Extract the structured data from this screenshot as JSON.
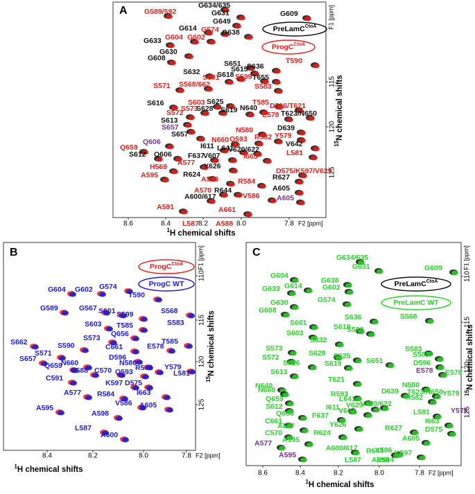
{
  "panels": [
    {
      "letter": "A",
      "x_ticks": [
        "8.6",
        "8.4",
        "8.2",
        "8.0",
        "7.8"
      ],
      "x_unit": "F2 [ppm]",
      "y_ticks": [
        "115",
        "120",
        "125"
      ],
      "y_unit": "F1 [ppm]",
      "x_axis_label": {
        "sup": "1",
        "text": "H chemical shifts"
      },
      "y_axis_label": {
        "sup": "15",
        "text": "N chemical shifts"
      },
      "legend": [
        {
          "name": "PreLamC",
          "sup": "CtoA",
          "color": "black"
        },
        {
          "name": "ProgC",
          "sup": "CtoA",
          "color": "red"
        }
      ],
      "peak_labels": [
        {
          "text": "G589/592",
          "color": "red"
        },
        {
          "text": "G634/635",
          "color": "black"
        },
        {
          "text": "G631",
          "color": "black"
        },
        {
          "text": "G649",
          "color": "black"
        },
        {
          "text": "G609",
          "color": "black"
        },
        {
          "text": "G614",
          "color": "black"
        },
        {
          "text": "G574",
          "color": "red"
        },
        {
          "text": "G638",
          "color": "black"
        },
        {
          "text": "G604",
          "color": "red"
        },
        {
          "text": "G602",
          "color": "red"
        },
        {
          "text": "G633",
          "color": "black"
        },
        {
          "text": "G630",
          "color": "black"
        },
        {
          "text": "G608",
          "color": "black"
        },
        {
          "text": "S651",
          "color": "black"
        },
        {
          "text": "S636",
          "color": "black"
        },
        {
          "text": "S615",
          "color": "black"
        },
        {
          "text": "S632",
          "color": "black"
        },
        {
          "text": "T590",
          "color": "red"
        },
        {
          "text": "S618",
          "color": "black"
        },
        {
          "text": "S601",
          "color": "red"
        },
        {
          "text": "S599",
          "color": "red"
        },
        {
          "text": "T655",
          "color": "black"
        },
        {
          "text": "S571",
          "color": "red"
        },
        {
          "text": "S568/662",
          "color": "red"
        },
        {
          "text": "S583",
          "color": "red"
        },
        {
          "text": "S616",
          "color": "black"
        },
        {
          "text": "S603",
          "color": "red"
        },
        {
          "text": "S625",
          "color": "black"
        },
        {
          "text": "T585",
          "color": "red"
        },
        {
          "text": "D596/T621",
          "color": "red"
        },
        {
          "text": "S573",
          "color": "red"
        },
        {
          "text": "S628",
          "color": "black"
        },
        {
          "text": "S619",
          "color": "black"
        },
        {
          "text": "N640",
          "color": "black"
        },
        {
          "text": "E578",
          "color": "red"
        },
        {
          "text": "T623/N650",
          "color": "black"
        },
        {
          "text": "S572",
          "color": "red"
        },
        {
          "text": "S613",
          "color": "black"
        },
        {
          "text": "S657",
          "color": "purple"
        },
        {
          "text": "D639",
          "color": "black"
        },
        {
          "text": "N580",
          "color": "red"
        },
        {
          "text": "S657",
          "color": "black"
        },
        {
          "text": "R582",
          "color": "red"
        },
        {
          "text": "Y579",
          "color": "red"
        },
        {
          "text": "Q593",
          "color": "red"
        },
        {
          "text": "N660",
          "color": "red"
        },
        {
          "text": "Q606",
          "color": "purple"
        },
        {
          "text": "V642",
          "color": "black"
        },
        {
          "text": "I611",
          "color": "black"
        },
        {
          "text": "L641",
          "color": "black"
        },
        {
          "text": "V620/622",
          "color": "black"
        },
        {
          "text": "Q659",
          "color": "red"
        },
        {
          "text": "L581",
          "color": "red"
        },
        {
          "text": "S612",
          "color": "black"
        },
        {
          "text": "Q606",
          "color": "black"
        },
        {
          "text": "F637",
          "color": "black"
        },
        {
          "text": "V607",
          "color": "black"
        },
        {
          "text": "I663",
          "color": "red"
        },
        {
          "text": "A577",
          "color": "red"
        },
        {
          "text": "Y626",
          "color": "black"
        },
        {
          "text": "H569",
          "color": "red"
        },
        {
          "text": "D575/K597/V629",
          "color": "red"
        },
        {
          "text": "R624",
          "color": "black"
        },
        {
          "text": "A595",
          "color": "red"
        },
        {
          "text": "R627",
          "color": "black"
        },
        {
          "text": "A598",
          "color": "red"
        },
        {
          "text": "R584",
          "color": "red"
        },
        {
          "text": "A605",
          "color": "black"
        },
        {
          "text": "A570",
          "color": "red"
        },
        {
          "text": "R644",
          "color": "black"
        },
        {
          "text": "A600/617",
          "color": "black"
        },
        {
          "text": "V586",
          "color": "red"
        },
        {
          "text": "A605",
          "color": "purple"
        },
        {
          "text": "A591",
          "color": "red"
        },
        {
          "text": "A661",
          "color": "red"
        },
        {
          "text": "L587",
          "color": "red"
        },
        {
          "text": "A588",
          "color": "red"
        }
      ]
    },
    {
      "letter": "B",
      "x_ticks": [
        "8.4",
        "8.2",
        "8.0",
        "7.8"
      ],
      "x_unit": "F2 [ppm]",
      "y_ticks": [
        "110",
        "115",
        "120",
        "125"
      ],
      "y_unit": "F1 [ppm]",
      "x_axis_label": {
        "sup": "1",
        "text": "H chemical shifts"
      },
      "y_axis_label": {
        "sup": "15",
        "text": "N chemical shifts"
      },
      "legend": [
        {
          "name": "ProgC",
          "sup": "CtoA",
          "color": "red"
        },
        {
          "name": "ProgC WT",
          "sup": null,
          "color": "blue"
        }
      ],
      "peak_labels": [
        {
          "text": "G604",
          "color": "blue"
        },
        {
          "text": "G602",
          "color": "blue"
        },
        {
          "text": "G574",
          "color": "blue"
        },
        {
          "text": "G589",
          "color": "blue"
        },
        {
          "text": "G567",
          "color": "blue"
        },
        {
          "text": "T590",
          "color": "blue"
        },
        {
          "text": "S601",
          "color": "blue"
        },
        {
          "text": "S599",
          "color": "blue"
        },
        {
          "text": "S568",
          "color": "blue"
        },
        {
          "text": "S603",
          "color": "blue"
        },
        {
          "text": "T585",
          "color": "blue"
        },
        {
          "text": "S583",
          "color": "blue"
        },
        {
          "text": "Q656",
          "color": "blue"
        },
        {
          "text": "T585",
          "color": "blue"
        },
        {
          "text": "S573",
          "color": "blue"
        },
        {
          "text": "S662",
          "color": "blue"
        },
        {
          "text": "S590",
          "color": "blue"
        },
        {
          "text": "C661",
          "color": "blue"
        },
        {
          "text": "E578",
          "color": "blue"
        },
        {
          "text": "S571",
          "color": "blue"
        },
        {
          "text": "D596",
          "color": "blue"
        },
        {
          "text": "S657",
          "color": "blue"
        },
        {
          "text": "N660",
          "color": "blue"
        },
        {
          "text": "N580",
          "color": "blue"
        },
        {
          "text": "R582",
          "color": "blue"
        },
        {
          "text": "Y579",
          "color": "blue"
        },
        {
          "text": "Q659",
          "color": "blue"
        },
        {
          "text": "C588",
          "color": "blue"
        },
        {
          "text": "C570",
          "color": "blue"
        },
        {
          "text": "Q593",
          "color": "blue"
        },
        {
          "text": "L581",
          "color": "blue"
        },
        {
          "text": "C591",
          "color": "blue"
        },
        {
          "text": "K597",
          "color": "blue"
        },
        {
          "text": "D575",
          "color": "blue"
        },
        {
          "text": "R584",
          "color": "blue"
        },
        {
          "text": "I663",
          "color": "blue"
        },
        {
          "text": "A577",
          "color": "blue"
        },
        {
          "text": "V586",
          "color": "blue"
        },
        {
          "text": "A605",
          "color": "blue"
        },
        {
          "text": "A595",
          "color": "blue"
        },
        {
          "text": "A598",
          "color": "blue"
        },
        {
          "text": "L587",
          "color": "blue"
        },
        {
          "text": "A600",
          "color": "blue"
        }
      ]
    },
    {
      "letter": "C",
      "x_ticks": [
        "8.6",
        "8.4",
        "8.2",
        "8.0",
        "7.8"
      ],
      "x_unit": "F2 [ppm]",
      "y_ticks": [
        "110",
        "115",
        "120",
        "125"
      ],
      "y_unit": "F1 [ppm]",
      "x_axis_label": {
        "sup": "1",
        "text": "H chemical shifts"
      },
      "y_axis_label": {
        "sup": "15",
        "text": "N chemical shifts"
      },
      "legend": [
        {
          "name": "PreLamC",
          "sup": "CtoA",
          "color": "black"
        },
        {
          "name": "PreLamC WT",
          "sup": null,
          "color": "green"
        }
      ],
      "peak_labels": [
        {
          "text": "G634/635",
          "color": "green"
        },
        {
          "text": "G631",
          "color": "green"
        },
        {
          "text": "G609",
          "color": "green"
        },
        {
          "text": "G604",
          "color": "green"
        },
        {
          "text": "G638",
          "color": "green"
        },
        {
          "text": "G633",
          "color": "green"
        },
        {
          "text": "G614",
          "color": "green"
        },
        {
          "text": "G602",
          "color": "green"
        },
        {
          "text": "G574",
          "color": "green"
        },
        {
          "text": "G630",
          "color": "green"
        },
        {
          "text": "G608",
          "color": "green"
        },
        {
          "text": "S636",
          "color": "green"
        },
        {
          "text": "S601",
          "color": "green"
        },
        {
          "text": "S618",
          "color": "green"
        },
        {
          "text": "S568",
          "color": "green"
        },
        {
          "text": "S599",
          "color": "green"
        },
        {
          "text": "S603",
          "color": "green"
        },
        {
          "text": "S632",
          "color": "green"
        },
        {
          "text": "S583",
          "color": "green"
        },
        {
          "text": "S573",
          "color": "green"
        },
        {
          "text": "S628",
          "color": "green"
        },
        {
          "text": "S651",
          "color": "green"
        },
        {
          "text": "S585",
          "color": "green"
        },
        {
          "text": "S572",
          "color": "green"
        },
        {
          "text": "S625",
          "color": "green"
        },
        {
          "text": "D596",
          "color": "green"
        },
        {
          "text": "S616",
          "color": "green"
        },
        {
          "text": "S619",
          "color": "green"
        },
        {
          "text": "E578",
          "color": "purple"
        },
        {
          "text": "E578",
          "color": "green"
        },
        {
          "text": "S613",
          "color": "green"
        },
        {
          "text": "N640",
          "color": "green"
        },
        {
          "text": "T621",
          "color": "green"
        },
        {
          "text": "N580",
          "color": "green"
        },
        {
          "text": "N660",
          "color": "green"
        },
        {
          "text": "T623/N650",
          "color": "green"
        },
        {
          "text": "D639",
          "color": "green"
        },
        {
          "text": "R582",
          "color": "green"
        },
        {
          "text": "Y579",
          "color": "green"
        },
        {
          "text": "Q659",
          "color": "green"
        },
        {
          "text": "R593",
          "color": "green"
        },
        {
          "text": "L641",
          "color": "green"
        },
        {
          "text": "S612",
          "color": "green"
        },
        {
          "text": "I611",
          "color": "green"
        },
        {
          "text": "V629",
          "color": "green"
        },
        {
          "text": "V620/622",
          "color": "green"
        },
        {
          "text": "Q606",
          "color": "green"
        },
        {
          "text": "V607",
          "color": "green"
        },
        {
          "text": "L581",
          "color": "green"
        },
        {
          "text": "Y579",
          "color": "purple"
        },
        {
          "text": "F637",
          "color": "green"
        },
        {
          "text": "C661",
          "color": "green"
        },
        {
          "text": "A577",
          "color": "green"
        },
        {
          "text": "Y626",
          "color": "green"
        },
        {
          "text": "I663",
          "color": "green"
        },
        {
          "text": "D575",
          "color": "green"
        },
        {
          "text": "R627",
          "color": "green"
        },
        {
          "text": "C570",
          "color": "green"
        },
        {
          "text": "A577",
          "color": "purple"
        },
        {
          "text": "R624",
          "color": "green"
        },
        {
          "text": "A605",
          "color": "green"
        },
        {
          "text": "A595",
          "color": "green"
        },
        {
          "text": "A600/617",
          "color": "green"
        },
        {
          "text": "V586",
          "color": "green"
        },
        {
          "text": "K597",
          "color": "green"
        },
        {
          "text": "R644",
          "color": "green"
        },
        {
          "text": "A595",
          "color": "purple"
        },
        {
          "text": "L587",
          "color": "green"
        },
        {
          "text": "A598",
          "color": "green"
        },
        {
          "text": "R584",
          "color": "green"
        }
      ]
    }
  ]
}
